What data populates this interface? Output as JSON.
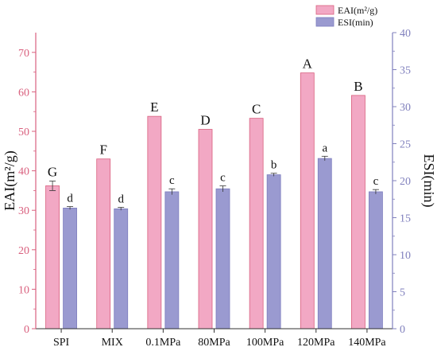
{
  "chart_data": {
    "type": "bar",
    "categories": [
      "SPI",
      "MIX",
      "0.1MPa",
      "80MPa",
      "100MPa",
      "120MPa",
      "140MPa"
    ],
    "series": [
      {
        "name": "EAI(m²/g)",
        "axis": "left",
        "values": [
          36.2,
          43.0,
          53.8,
          50.5,
          53.3,
          64.8,
          59.1
        ],
        "errors": [
          1.2,
          0,
          0,
          0,
          0,
          0,
          0
        ],
        "letters": [
          "G",
          "F",
          "E",
          "D",
          "C",
          "A",
          "B"
        ],
        "color": "#f2a8c4",
        "edge": "#d9607e"
      },
      {
        "name": "ESI(min)",
        "axis": "right",
        "values": [
          16.3,
          16.2,
          18.5,
          18.9,
          20.8,
          23.0,
          18.5
        ],
        "errors": [
          0.2,
          0.2,
          0.4,
          0.4,
          0.2,
          0.3,
          0.3
        ],
        "letters": [
          "d",
          "d",
          "c",
          "c",
          "b",
          "a",
          "c"
        ],
        "color": "#9a9ad0",
        "edge": "#7d7dbe"
      }
    ],
    "left_axis": {
      "label": "EAI(m²/g)",
      "ylim": [
        0,
        75
      ],
      "ticks": [
        "0",
        "10",
        "20",
        "30",
        "40",
        "50",
        "60",
        "70"
      ],
      "color": "#d9607e"
    },
    "right_axis": {
      "label": "ESI(min)",
      "ylim": [
        0,
        40
      ],
      "ticks": [
        "0",
        "5",
        "10",
        "15",
        "20",
        "25",
        "30",
        "35",
        "40"
      ],
      "color": "#8080bd"
    },
    "legend_position": "top-right",
    "grid": false
  }
}
